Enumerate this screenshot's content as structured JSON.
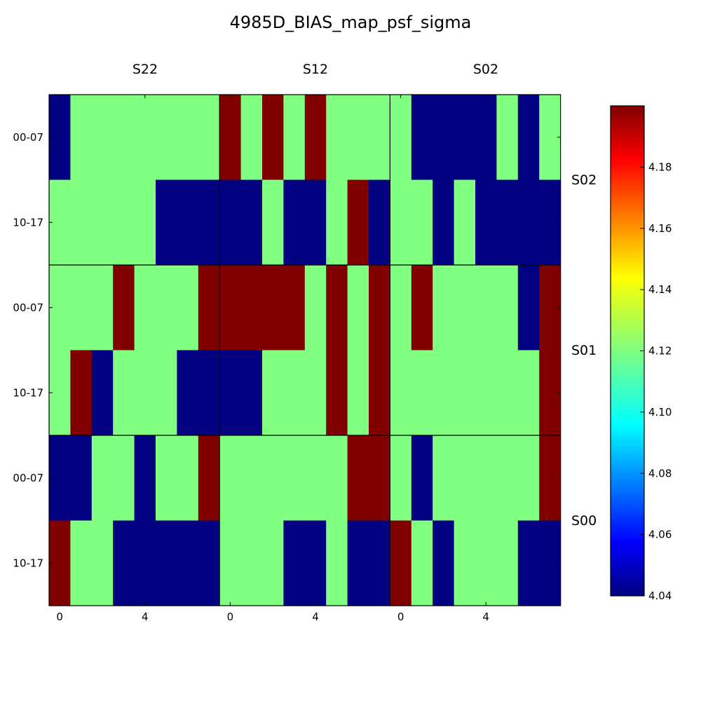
{
  "chart_data": {
    "type": "heatmap",
    "title": "4985D_BIAS_map_psf_sigma",
    "column_labels": [
      "S22",
      "S12",
      "S02"
    ],
    "row_labels": [
      "S02",
      "S01",
      "S00"
    ],
    "y_tick_labels": [
      "00-07",
      "10-17"
    ],
    "x_tick_labels": [
      "0",
      "4"
    ],
    "x_tick_values": [
      0,
      4
    ],
    "colorbar": {
      "min": 4.04,
      "max": 4.2,
      "ticks": [
        "4.04",
        "4.06",
        "4.08",
        "4.10",
        "4.12",
        "4.14",
        "4.16",
        "4.18"
      ],
      "tick_values": [
        4.04,
        4.06,
        4.08,
        4.1,
        4.12,
        4.14,
        4.16,
        4.18
      ]
    },
    "colormap": "jet",
    "value_levels": {
      "low": 4.04,
      "mid": 4.12,
      "high": 4.2
    },
    "panels": [
      [
        {
          "row": "S02",
          "col": "S22",
          "cells": [
            "LMMMMMMM",
            "MMMMMLLL"
          ]
        },
        {
          "row": "S02",
          "col": "S12",
          "cells": [
            "HMHMHMMM",
            "LLMLLMHL"
          ]
        },
        {
          "row": "S02",
          "col": "S02",
          "cells": [
            "MLLLLMLM",
            "MMLMLLLL"
          ]
        }
      ],
      [
        {
          "row": "S01",
          "col": "S22",
          "cells": [
            "MMMHMMMH",
            "MHLMMMLL"
          ]
        },
        {
          "row": "S01",
          "col": "S12",
          "cells": [
            "HHHHMHMH",
            "LLMMMHMH"
          ]
        },
        {
          "row": "S01",
          "col": "S02",
          "cells": [
            "MHMMMMLH",
            "MMMMMMMH"
          ]
        }
      ],
      [
        {
          "row": "S00",
          "col": "S22",
          "cells": [
            "LLMMLMMH",
            "HMMLLLLL"
          ]
        },
        {
          "row": "S00",
          "col": "S12",
          "cells": [
            "MMMMMMHH",
            "MMMLLMLL"
          ]
        },
        {
          "row": "S00",
          "col": "S02",
          "cells": [
            "MLMMMMMH",
            "HMLMMMLL"
          ]
        }
      ]
    ]
  }
}
